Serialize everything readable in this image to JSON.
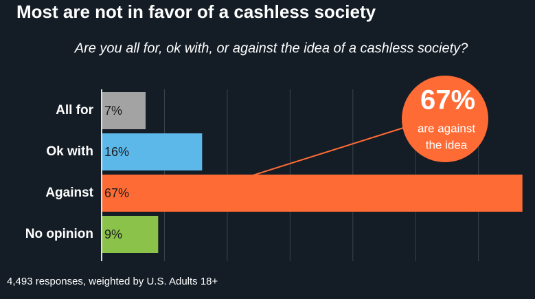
{
  "chart_data": {
    "type": "bar",
    "orientation": "horizontal",
    "title": "Most are not in favor of a cashless society",
    "subtitle": "Are you all for, ok with, or against the idea of a cashless society?",
    "categories": [
      "All for",
      "Ok with",
      "Against",
      "No opinion"
    ],
    "values": [
      7,
      16,
      67,
      9
    ],
    "value_labels": [
      "7%",
      "16%",
      "67%",
      "9%"
    ],
    "colors": [
      "#a3a3a3",
      "#5db8ea",
      "#ff6b35",
      "#8bc34a"
    ],
    "xlim": [
      0,
      69
    ],
    "xticks": [
      0,
      10,
      20,
      30,
      40,
      50,
      60
    ],
    "grid": true,
    "annotation": {
      "headline": "67%",
      "lines": [
        "are against",
        "the idea"
      ],
      "color": "#ff6b35"
    },
    "footer": "4,493 responses, weighted by U.S. Adults 18+"
  }
}
